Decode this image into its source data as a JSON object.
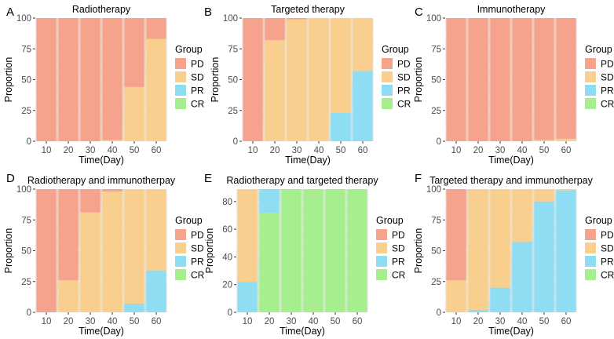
{
  "colors": {
    "PD": "#F6A38E",
    "SD": "#F8CF8E",
    "PR": "#8FDDF2",
    "CR": "#A7EE8E",
    "panel_bg": "#EBEBEB",
    "grid": "#FFFFFF"
  },
  "chart_data": [
    {
      "letter": "A",
      "type": "bar",
      "stacked": true,
      "title": "Radiotherapy",
      "xlabel": "Time(Day)",
      "ylabel": "Proportion",
      "x_ticks": [
        "10",
        "20",
        "30",
        "40",
        "50",
        "60"
      ],
      "y_ticks": [
        "0",
        "25",
        "50",
        "75",
        "100"
      ],
      "ylim": [
        0,
        100
      ],
      "legend": {
        "title": "Group",
        "items": [
          "PD",
          "SD",
          "PR",
          "CR"
        ],
        "position": "right"
      },
      "stack_order": [
        "CR",
        "PR",
        "SD",
        "PD"
      ],
      "categories": [
        10,
        20,
        30,
        40,
        50,
        60
      ],
      "series": [
        {
          "name": "PD",
          "values": [
            100,
            100,
            100,
            99,
            56,
            17
          ]
        },
        {
          "name": "SD",
          "values": [
            0,
            0,
            0,
            1,
            44,
            83
          ]
        },
        {
          "name": "PR",
          "values": [
            0,
            0,
            0,
            0,
            0,
            0
          ]
        },
        {
          "name": "CR",
          "values": [
            0,
            0,
            0,
            0,
            0,
            0
          ]
        }
      ]
    },
    {
      "letter": "B",
      "type": "bar",
      "stacked": true,
      "title": "Targeted therapy",
      "xlabel": "Time(Day)",
      "ylabel": "Proportion",
      "x_ticks": [
        "10",
        "20",
        "30",
        "40",
        "50",
        "60"
      ],
      "y_ticks": [
        "0",
        "25",
        "50",
        "75",
        "100"
      ],
      "ylim": [
        0,
        100
      ],
      "legend": {
        "title": "Group",
        "items": [
          "PD",
          "SD",
          "PR",
          "CR"
        ],
        "position": "right"
      },
      "stack_order": [
        "CR",
        "PR",
        "SD",
        "PD"
      ],
      "categories": [
        10,
        20,
        30,
        40,
        50,
        60
      ],
      "series": [
        {
          "name": "PD",
          "values": [
            100,
            18,
            1,
            0,
            0,
            0
          ]
        },
        {
          "name": "SD",
          "values": [
            0,
            82,
            99,
            100,
            77,
            43
          ]
        },
        {
          "name": "PR",
          "values": [
            0,
            0,
            0,
            0,
            23,
            57
          ]
        },
        {
          "name": "CR",
          "values": [
            0,
            0,
            0,
            0,
            0,
            0
          ]
        }
      ]
    },
    {
      "letter": "C",
      "type": "bar",
      "stacked": true,
      "title": "Immunotherapy",
      "xlabel": "Time(Day)",
      "ylabel": "Proportion",
      "x_ticks": [
        "10",
        "20",
        "30",
        "40",
        "50",
        "60"
      ],
      "y_ticks": [
        "0",
        "25",
        "50",
        "75",
        "100"
      ],
      "ylim": [
        0,
        100
      ],
      "legend": {
        "title": "Group",
        "items": [
          "PD",
          "SD",
          "PR",
          "CR"
        ],
        "position": "right"
      },
      "stack_order": [
        "CR",
        "PR",
        "SD",
        "PD"
      ],
      "categories": [
        10,
        20,
        30,
        40,
        50,
        60
      ],
      "series": [
        {
          "name": "PD",
          "values": [
            100,
            100,
            100,
            100,
            99,
            98
          ]
        },
        {
          "name": "SD",
          "values": [
            0,
            0,
            0,
            0,
            1,
            2
          ]
        },
        {
          "name": "PR",
          "values": [
            0,
            0,
            0,
            0,
            0,
            0
          ]
        },
        {
          "name": "CR",
          "values": [
            0,
            0,
            0,
            0,
            0,
            0
          ]
        }
      ]
    },
    {
      "letter": "D",
      "type": "bar",
      "stacked": true,
      "title": "Radiotherapy and immunotherpay",
      "xlabel": "Time(Day)",
      "ylabel": "Proportion",
      "x_ticks": [
        "10",
        "20",
        "30",
        "40",
        "50",
        "60"
      ],
      "y_ticks": [
        "0",
        "25",
        "50",
        "75",
        "100"
      ],
      "ylim": [
        0,
        100
      ],
      "legend": {
        "title": "Group",
        "items": [
          "PD",
          "SD",
          "PR",
          "CR"
        ],
        "position": "right"
      },
      "stack_order": [
        "CR",
        "PR",
        "SD",
        "PD"
      ],
      "categories": [
        10,
        20,
        30,
        40,
        50,
        60
      ],
      "series": [
        {
          "name": "PD",
          "values": [
            100,
            74,
            19,
            2,
            0,
            0
          ]
        },
        {
          "name": "SD",
          "values": [
            0,
            26,
            81,
            98,
            93,
            66
          ]
        },
        {
          "name": "PR",
          "values": [
            0,
            0,
            0,
            0,
            7,
            34
          ]
        },
        {
          "name": "CR",
          "values": [
            0,
            0,
            0,
            0,
            0,
            0
          ]
        }
      ]
    },
    {
      "letter": "E",
      "type": "bar",
      "stacked": true,
      "title": "Radiotherapy and targeted therapy",
      "xlabel": "Time(Day)",
      "ylabel": "Proportion",
      "x_ticks": [
        "10",
        "20",
        "30",
        "40",
        "50",
        "60"
      ],
      "y_ticks": [
        "0",
        "20",
        "40",
        "60",
        "80"
      ],
      "ylim": [
        0,
        89
      ],
      "legend": {
        "title": "Group",
        "items": [
          "PD",
          "SD",
          "PR",
          "CR"
        ],
        "position": "right"
      },
      "stack_order": [
        "CR",
        "PR",
        "SD",
        "PD"
      ],
      "categories": [
        10,
        20,
        30,
        40,
        50,
        60
      ],
      "series": [
        {
          "name": "PD",
          "values": [
            0,
            0,
            0,
            0,
            0,
            0
          ]
        },
        {
          "name": "SD",
          "values": [
            67,
            0,
            0,
            0,
            0,
            0
          ]
        },
        {
          "name": "PR",
          "values": [
            22,
            17,
            0,
            0,
            0,
            0
          ]
        },
        {
          "name": "CR",
          "values": [
            0,
            72,
            89,
            89,
            89,
            89
          ]
        }
      ]
    },
    {
      "letter": "F",
      "type": "bar",
      "stacked": true,
      "title": "Targeted therapy and immunotherpay",
      "xlabel": "Time(Day)",
      "ylabel": "Proportion",
      "x_ticks": [
        "10",
        "20",
        "30",
        "40",
        "50",
        "60"
      ],
      "y_ticks": [
        "0",
        "25",
        "50",
        "75",
        "100"
      ],
      "ylim": [
        0,
        100
      ],
      "legend": {
        "title": "Group",
        "items": [
          "PD",
          "SD",
          "PR",
          "CR"
        ],
        "position": "right"
      },
      "stack_order": [
        "CR",
        "PR",
        "SD",
        "PD"
      ],
      "categories": [
        10,
        20,
        30,
        40,
        50,
        60
      ],
      "series": [
        {
          "name": "PD",
          "values": [
            74,
            0,
            0,
            0,
            0,
            0
          ]
        },
        {
          "name": "SD",
          "values": [
            26,
            98,
            80,
            43,
            10,
            1
          ]
        },
        {
          "name": "PR",
          "values": [
            0,
            2,
            20,
            57,
            90,
            99
          ]
        },
        {
          "name": "CR",
          "values": [
            0,
            0,
            0,
            0,
            0,
            0
          ]
        }
      ]
    }
  ]
}
